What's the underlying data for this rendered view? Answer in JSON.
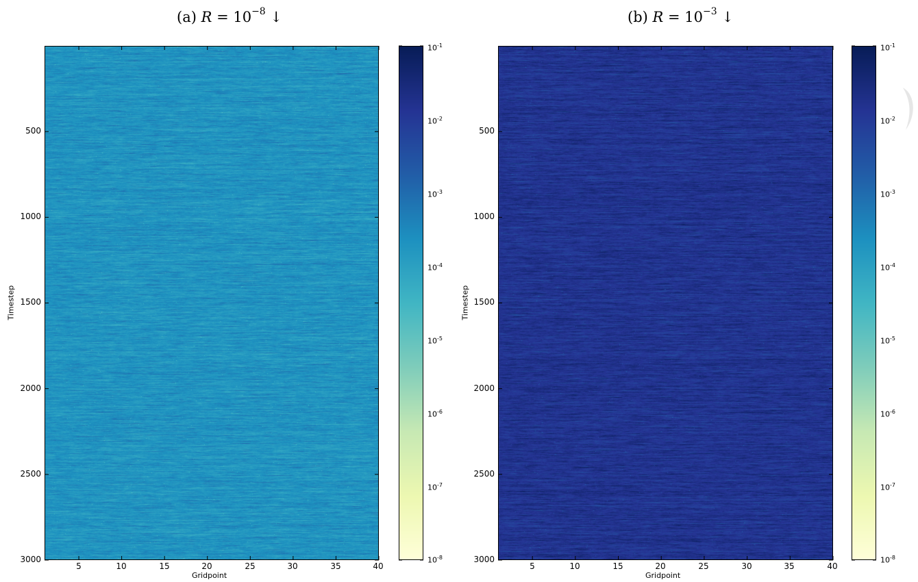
{
  "chart_data": [
    {
      "type": "heatmap",
      "title_prefix": "(a) ",
      "title_var": "R",
      "title_mid": " = 10",
      "title_exp": "−8",
      "title_suffix": " ↓",
      "xlabel": "Gridpoint",
      "ylabel": "Timestep",
      "xlim": [
        1,
        40
      ],
      "ylim": [
        3000,
        1
      ],
      "x_ticks": [
        "5",
        "10",
        "15",
        "20",
        "25",
        "30",
        "35",
        "40"
      ],
      "y_ticks": [
        "500",
        "1000",
        "1500",
        "2000",
        "2500",
        "3000"
      ],
      "colorbar": {
        "scale": "log",
        "range": [
          1e-08,
          0.1
        ],
        "colormap": "YlGnBu",
        "tick_base": "10",
        "tick_exponents": [
          "-1",
          "-2",
          "-3",
          "-4",
          "-5",
          "-6",
          "-7",
          "-8"
        ]
      },
      "typical_value": 0.0002,
      "spread_log10": 0.35
    },
    {
      "type": "heatmap",
      "title_prefix": "(b) ",
      "title_var": "R",
      "title_mid": " = 10",
      "title_exp": "−3",
      "title_suffix": " ↓",
      "xlabel": "Gridpoint",
      "ylabel": "Timestep",
      "xlim": [
        1,
        40
      ],
      "ylim": [
        3000,
        1
      ],
      "x_ticks": [
        "5",
        "10",
        "15",
        "20",
        "25",
        "30",
        "35",
        "40"
      ],
      "y_ticks": [
        "500",
        "1000",
        "1500",
        "2000",
        "2500",
        "3000"
      ],
      "colorbar": {
        "scale": "log",
        "range": [
          1e-08,
          0.1
        ],
        "colormap": "YlGnBu",
        "tick_base": "10",
        "tick_exponents": [
          "-1",
          "-2",
          "-3",
          "-4",
          "-5",
          "-6",
          "-7",
          "-8"
        ]
      },
      "typical_value": 0.015,
      "spread_log10": 0.35
    }
  ],
  "colormap_stops": [
    "#ffffd9",
    "#edf8b1",
    "#c7e9b4",
    "#7fcdbb",
    "#41b6c4",
    "#1d91c0",
    "#225ea8",
    "#253494",
    "#081d58"
  ]
}
